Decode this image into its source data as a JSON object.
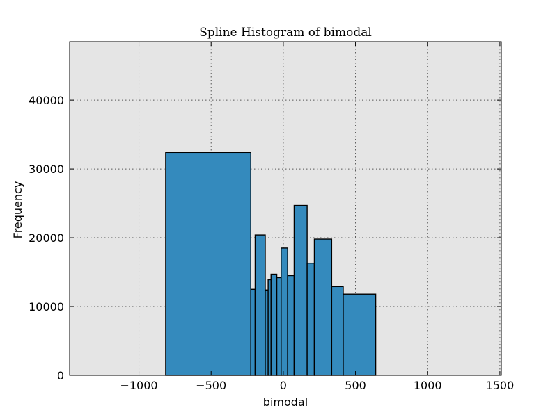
{
  "chart_data": {
    "type": "bar",
    "title": "Spline Histogram of bimodal",
    "xlabel": "bimodal",
    "ylabel": "Frequency",
    "xlim": [
      -1480,
      1510
    ],
    "ylim": [
      0,
      48500
    ],
    "xticks": [
      -1000,
      -500,
      0,
      500,
      1000,
      1500
    ],
    "xtick_labels": [
      "−1000",
      "−500",
      "0",
      "500",
      "1000",
      "1500"
    ],
    "yticks": [
      0,
      10000,
      20000,
      30000,
      40000
    ],
    "ytick_labels": [
      "0",
      "10000",
      "20000",
      "30000",
      "40000"
    ],
    "grid": true,
    "bar_color": "#348abd",
    "plot_background": "#e5e5e5",
    "bins": [
      {
        "x0": -815,
        "x1": -225,
        "value": 32400
      },
      {
        "x0": -225,
        "x1": -195,
        "value": 12500
      },
      {
        "x0": -195,
        "x1": -125,
        "value": 20400
      },
      {
        "x0": -125,
        "x1": -105,
        "value": 12400
      },
      {
        "x0": -105,
        "x1": -85,
        "value": 13900
      },
      {
        "x0": -85,
        "x1": -45,
        "value": 14700
      },
      {
        "x0": -45,
        "x1": -15,
        "value": 14200
      },
      {
        "x0": -15,
        "x1": 30,
        "value": 18500
      },
      {
        "x0": 30,
        "x1": 75,
        "value": 14500
      },
      {
        "x0": 75,
        "x1": 165,
        "value": 24700
      },
      {
        "x0": 165,
        "x1": 215,
        "value": 16300
      },
      {
        "x0": 215,
        "x1": 335,
        "value": 19800
      },
      {
        "x0": 335,
        "x1": 415,
        "value": 12900
      },
      {
        "x0": 415,
        "x1": 640,
        "value": 11800
      }
    ]
  }
}
